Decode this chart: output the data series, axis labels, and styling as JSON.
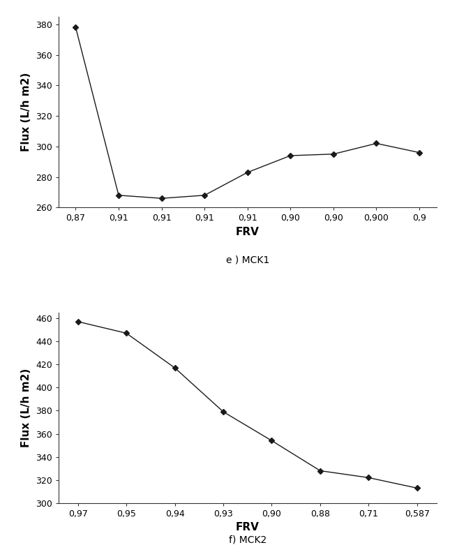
{
  "mck1": {
    "y_values": [
      378,
      268,
      266,
      268,
      283,
      294,
      295,
      302,
      296
    ],
    "x_tick_labels": [
      "0,87",
      "0,91",
      "0,91",
      "0,91",
      "0,91",
      "0,90",
      "0,90",
      "0,900",
      "0,9"
    ],
    "ylim": [
      260,
      385
    ],
    "yticks": [
      260,
      280,
      300,
      320,
      340,
      360,
      380
    ],
    "ylabel": "Flux (L/h m2)",
    "xlabel": "FRV",
    "subtitle": "e ) MCK1"
  },
  "mck2": {
    "y_values": [
      457,
      447,
      417,
      379,
      354,
      328,
      322,
      313
    ],
    "x_tick_labels": [
      "0,97",
      "0,95",
      "0,94",
      "0,93",
      "0,90",
      "0,88",
      "0,71",
      "0,587"
    ],
    "ylim": [
      300,
      465
    ],
    "yticks": [
      300,
      320,
      340,
      360,
      380,
      400,
      420,
      440,
      460
    ],
    "ylabel": "Flux (L/h m2)",
    "xlabel": "FRV",
    "subtitle": "f) MCK2"
  },
  "line_color": "#1a1a1a",
  "marker": "D",
  "markersize": 4,
  "linewidth": 1.0,
  "bg_color": "#ffffff",
  "ylabel_fontsize": 11,
  "xlabel_fontsize": 11,
  "ylabel_fontweight": "bold",
  "xlabel_fontweight": "bold",
  "tick_fontsize": 9,
  "subtitle_fontsize": 10
}
